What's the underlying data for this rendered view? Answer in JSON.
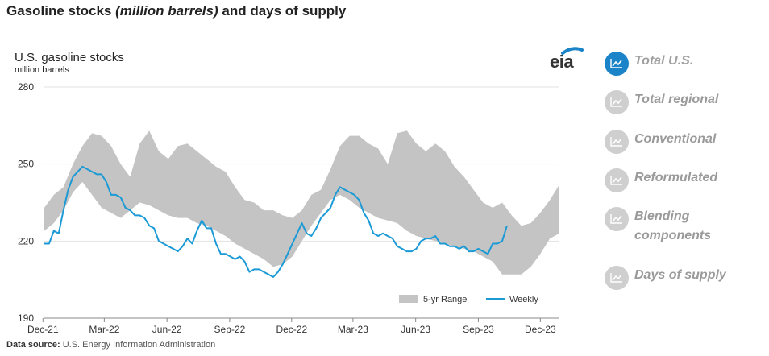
{
  "header": {
    "title_main": "Gasoline stocks ",
    "title_italic": "(million barrels)",
    "title_tail": " and days of supply"
  },
  "chart_header": {
    "title": "U.S. gasoline stocks",
    "unit": "million barrels"
  },
  "logo": {
    "text": "eia"
  },
  "footer": {
    "label": "Data source:",
    "text": " U.S. Energy Information Administration"
  },
  "nav": {
    "items": [
      {
        "label": "Total U.S.",
        "active": true
      },
      {
        "label": "Total regional",
        "active": false
      },
      {
        "label": "Conventional",
        "active": false
      },
      {
        "label": "Reformulated",
        "active": false
      },
      {
        "label": "Blending components",
        "active": false
      },
      {
        "label": "Days of supply",
        "active": false
      }
    ]
  },
  "colors": {
    "range": "#c4c4c4",
    "weekly": "#1b9ad6",
    "grid": "#e2e2e2",
    "active": "#1b84c8"
  },
  "chart_data": {
    "type": "area",
    "title": "U.S. gasoline stocks",
    "ylabel": "million barrels",
    "ylim": [
      190,
      280
    ],
    "yticks": [
      190,
      220,
      250,
      280
    ],
    "xlim": [
      "2021-12-03",
      "2023-12-29"
    ],
    "xticks": [
      {
        "date": "2021-12-01",
        "label": "Dec-21"
      },
      {
        "date": "2022-03-01",
        "label": "Mar-22"
      },
      {
        "date": "2022-06-01",
        "label": "Jun-22"
      },
      {
        "date": "2022-09-01",
        "label": "Sep-22"
      },
      {
        "date": "2022-12-01",
        "label": "Dec-22"
      },
      {
        "date": "2023-03-01",
        "label": "Mar-23"
      },
      {
        "date": "2023-06-01",
        "label": "Jun-23"
      },
      {
        "date": "2023-09-01",
        "label": "Sep-23"
      },
      {
        "date": "2023-12-01",
        "label": "Dec-23"
      }
    ],
    "legend": {
      "placement": "bottom-right",
      "range_label": "5-yr Range",
      "weekly_label": "Weekly"
    },
    "grid": true,
    "range": {
      "name": "5-yr Range",
      "x": [
        "2021-12-03",
        "2021-12-17",
        "2021-12-31",
        "2022-01-14",
        "2022-01-28",
        "2022-02-11",
        "2022-02-25",
        "2022-03-11",
        "2022-03-25",
        "2022-04-08",
        "2022-04-22",
        "2022-05-06",
        "2022-05-20",
        "2022-06-03",
        "2022-06-17",
        "2022-07-01",
        "2022-07-15",
        "2022-07-29",
        "2022-08-12",
        "2022-08-26",
        "2022-09-09",
        "2022-09-23",
        "2022-10-07",
        "2022-10-21",
        "2022-11-04",
        "2022-11-18",
        "2022-12-02",
        "2022-12-16",
        "2022-12-30",
        "2023-01-13",
        "2023-01-27",
        "2023-02-10",
        "2023-02-24",
        "2023-03-10",
        "2023-03-24",
        "2023-04-07",
        "2023-04-21",
        "2023-05-05",
        "2023-05-19",
        "2023-06-02",
        "2023-06-16",
        "2023-06-30",
        "2023-07-14",
        "2023-07-28",
        "2023-08-11",
        "2023-08-25",
        "2023-09-08",
        "2023-09-22",
        "2023-10-06",
        "2023-10-20",
        "2023-11-03",
        "2023-11-17",
        "2023-12-01",
        "2023-12-15",
        "2023-12-29"
      ],
      "low": [
        224,
        227,
        232,
        239,
        243,
        238,
        233,
        231,
        229,
        232,
        235,
        234,
        232,
        230,
        229,
        229,
        227,
        226,
        224,
        222,
        219,
        217,
        215,
        213,
        210,
        211,
        214,
        220,
        226,
        231,
        236,
        238,
        236,
        233,
        231,
        229,
        228,
        227,
        224,
        222,
        221,
        220,
        219,
        218,
        217,
        216,
        214,
        212,
        207,
        207,
        207,
        210,
        215,
        221,
        223
      ],
      "high": [
        233,
        238,
        241,
        250,
        257,
        262,
        261,
        257,
        250,
        245,
        258,
        263,
        255,
        252,
        257,
        258,
        255,
        252,
        249,
        247,
        241,
        236,
        235,
        232,
        232,
        230,
        229,
        232,
        238,
        240,
        248,
        257,
        261,
        261,
        258,
        256,
        250,
        262,
        263,
        258,
        255,
        258,
        255,
        249,
        245,
        240,
        235,
        233,
        235,
        230,
        226,
        227,
        231,
        236,
        242
      ]
    },
    "series": [
      {
        "name": "Weekly",
        "x": [
          "2021-12-03",
          "2021-12-10",
          "2021-12-17",
          "2021-12-24",
          "2021-12-31",
          "2022-01-07",
          "2022-01-14",
          "2022-01-21",
          "2022-01-28",
          "2022-02-04",
          "2022-02-11",
          "2022-02-18",
          "2022-02-25",
          "2022-03-04",
          "2022-03-11",
          "2022-03-18",
          "2022-03-25",
          "2022-04-01",
          "2022-04-08",
          "2022-04-15",
          "2022-04-22",
          "2022-04-29",
          "2022-05-06",
          "2022-05-13",
          "2022-05-20",
          "2022-05-27",
          "2022-06-03",
          "2022-06-10",
          "2022-06-17",
          "2022-06-24",
          "2022-07-01",
          "2022-07-08",
          "2022-07-15",
          "2022-07-22",
          "2022-07-29",
          "2022-08-05",
          "2022-08-12",
          "2022-08-19",
          "2022-08-26",
          "2022-09-02",
          "2022-09-09",
          "2022-09-16",
          "2022-09-23",
          "2022-09-30",
          "2022-10-07",
          "2022-10-14",
          "2022-10-21",
          "2022-10-28",
          "2022-11-04",
          "2022-11-11",
          "2022-11-18",
          "2022-11-25",
          "2022-12-02",
          "2022-12-09",
          "2022-12-16",
          "2022-12-23",
          "2022-12-30",
          "2023-01-06",
          "2023-01-13",
          "2023-01-20",
          "2023-01-27",
          "2023-02-03",
          "2023-02-10",
          "2023-02-17",
          "2023-02-24",
          "2023-03-03",
          "2023-03-10",
          "2023-03-17",
          "2023-03-24",
          "2023-03-31",
          "2023-04-07",
          "2023-04-14",
          "2023-04-21",
          "2023-04-28",
          "2023-05-05",
          "2023-05-12",
          "2023-05-19",
          "2023-05-26",
          "2023-06-02",
          "2023-06-09",
          "2023-06-16",
          "2023-06-23",
          "2023-06-30",
          "2023-07-07",
          "2023-07-14",
          "2023-07-21",
          "2023-07-28",
          "2023-08-04",
          "2023-08-11",
          "2023-08-18",
          "2023-08-25",
          "2023-09-01",
          "2023-09-08",
          "2023-09-15",
          "2023-09-22",
          "2023-09-29",
          "2023-10-06",
          "2023-10-13"
        ],
        "values": [
          219,
          219,
          224,
          223,
          232,
          240,
          245,
          247,
          249,
          248,
          247,
          246,
          246,
          243,
          238,
          238,
          237,
          233,
          232,
          230,
          230,
          229,
          226,
          225,
          220,
          219,
          218,
          217,
          216,
          218,
          221,
          219,
          224,
          228,
          225,
          225,
          219,
          215,
          215,
          214,
          213,
          214,
          212,
          208,
          209,
          209,
          208,
          207,
          206,
          208,
          211,
          215,
          219,
          223,
          227,
          223,
          222,
          225,
          229,
          231,
          233,
          238,
          241,
          240,
          239,
          238,
          236,
          231,
          228,
          223,
          222,
          223,
          222,
          221,
          218,
          217,
          216,
          216,
          217,
          220,
          221,
          221,
          222,
          219,
          219,
          218,
          218,
          217,
          218,
          216,
          216,
          217,
          216,
          215,
          219,
          219,
          220,
          226
        ]
      }
    ]
  }
}
